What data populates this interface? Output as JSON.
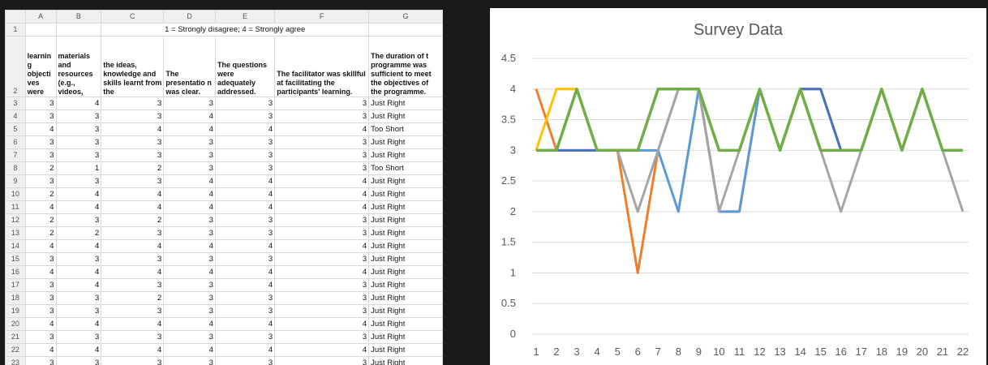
{
  "spreadsheet": {
    "columns": [
      "A",
      "B",
      "C",
      "D",
      "E",
      "F",
      "G"
    ],
    "row1": {
      "num": "1",
      "merged_text": "1 = Strongly disagree; 4 = Strongly agree"
    },
    "row2": {
      "num": "2",
      "headers": [
        "learnin g objecti ves were",
        "materials and resources (e.g., videos,",
        "the ideas, knowledge and skills learnt from the",
        "The presentatio n was clear.",
        "The questions were adequately addressed.",
        "The facilitator was skillful at facilitating the participants' learning.",
        "The duration of t programme was sufficient to meet the objectives of the programme."
      ]
    },
    "rows": [
      {
        "num": "3",
        "A": "3",
        "B": "4",
        "C": "3",
        "D": "3",
        "E": "3",
        "F": "3",
        "G": "Just Right"
      },
      {
        "num": "4",
        "A": "3",
        "B": "3",
        "C": "3",
        "D": "4",
        "E": "3",
        "F": "3",
        "G": "Just Right"
      },
      {
        "num": "5",
        "A": "4",
        "B": "3",
        "C": "4",
        "D": "4",
        "E": "4",
        "F": "4",
        "G": "Too Short"
      },
      {
        "num": "6",
        "A": "3",
        "B": "3",
        "C": "3",
        "D": "3",
        "E": "3",
        "F": "3",
        "G": "Just Right"
      },
      {
        "num": "7",
        "A": "3",
        "B": "3",
        "C": "3",
        "D": "3",
        "E": "3",
        "F": "3",
        "G": "Just Right"
      },
      {
        "num": "8",
        "A": "2",
        "B": "1",
        "C": "2",
        "D": "3",
        "E": "3",
        "F": "3",
        "G": "Too Short"
      },
      {
        "num": "9",
        "A": "3",
        "B": "3",
        "C": "3",
        "D": "4",
        "E": "4",
        "F": "4",
        "G": "Just Right"
      },
      {
        "num": "10",
        "A": "2",
        "B": "4",
        "C": "4",
        "D": "4",
        "E": "4",
        "F": "4",
        "G": "Just Right"
      },
      {
        "num": "11",
        "A": "4",
        "B": "4",
        "C": "4",
        "D": "4",
        "E": "4",
        "F": "4",
        "G": "Just Right"
      },
      {
        "num": "12",
        "A": "2",
        "B": "3",
        "C": "2",
        "D": "3",
        "E": "3",
        "F": "3",
        "G": "Just Right"
      },
      {
        "num": "13",
        "A": "2",
        "B": "2",
        "C": "3",
        "D": "3",
        "E": "3",
        "F": "3",
        "G": "Just Right"
      },
      {
        "num": "14",
        "A": "4",
        "B": "4",
        "C": "4",
        "D": "4",
        "E": "4",
        "F": "4",
        "G": "Just Right"
      },
      {
        "num": "15",
        "A": "3",
        "B": "3",
        "C": "3",
        "D": "3",
        "E": "3",
        "F": "3",
        "G": "Just Right"
      },
      {
        "num": "16",
        "A": "4",
        "B": "4",
        "C": "4",
        "D": "4",
        "E": "4",
        "F": "4",
        "G": "Just Right"
      },
      {
        "num": "17",
        "A": "3",
        "B": "4",
        "C": "3",
        "D": "3",
        "E": "4",
        "F": "3",
        "G": "Just Right"
      },
      {
        "num": "18",
        "A": "3",
        "B": "3",
        "C": "2",
        "D": "3",
        "E": "3",
        "F": "3",
        "G": "Just Right"
      },
      {
        "num": "19",
        "A": "3",
        "B": "3",
        "C": "3",
        "D": "3",
        "E": "3",
        "F": "3",
        "G": "Just Right"
      },
      {
        "num": "20",
        "A": "4",
        "B": "4",
        "C": "4",
        "D": "4",
        "E": "4",
        "F": "4",
        "G": "Just Right"
      },
      {
        "num": "21",
        "A": "3",
        "B": "3",
        "C": "3",
        "D": "3",
        "E": "3",
        "F": "3",
        "G": "Just Right"
      },
      {
        "num": "22",
        "A": "4",
        "B": "4",
        "C": "4",
        "D": "4",
        "E": "4",
        "F": "4",
        "G": "Just Right"
      },
      {
        "num": "23",
        "A": "3",
        "B": "3",
        "C": "3",
        "D": "3",
        "E": "3",
        "F": "3",
        "G": "Just Right"
      }
    ]
  },
  "chart_data": {
    "type": "line",
    "title": "Survey Data",
    "x": [
      "1",
      "2",
      "3",
      "4",
      "5",
      "6",
      "7",
      "8",
      "9",
      "10",
      "11",
      "12",
      "13",
      "14",
      "15",
      "16",
      "17",
      "18",
      "19",
      "20",
      "21",
      "22"
    ],
    "y_ticks": [
      "0",
      "0.5",
      "1",
      "1.5",
      "2",
      "2.5",
      "3",
      "3.5",
      "4",
      "4.5"
    ],
    "ylim": [
      0,
      4.5
    ],
    "grid": true,
    "series": [
      {
        "color": "#ED7D31",
        "values": [
          4,
          3,
          3,
          3,
          3,
          1,
          3,
          4,
          4,
          2,
          2,
          4,
          3,
          4,
          4,
          3,
          3,
          4,
          3,
          4,
          3,
          3
        ]
      },
      {
        "color": "#FFC000",
        "values": [
          3,
          4,
          4,
          3,
          3,
          3,
          4,
          4,
          4,
          3,
          3,
          4,
          3,
          4,
          3,
          3,
          3,
          4,
          3,
          4,
          3,
          3
        ]
      },
      {
        "color": "#4472C4",
        "values": [
          3,
          3,
          3,
          3,
          3,
          3,
          4,
          4,
          4,
          3,
          3,
          4,
          3,
          4,
          4,
          3,
          3,
          4,
          3,
          4,
          3,
          3
        ]
      },
      {
        "color": "#5B9BD5",
        "values": [
          3,
          3,
          4,
          3,
          3,
          3,
          3,
          2,
          4,
          2,
          2,
          4,
          3,
          4,
          3,
          3,
          3,
          4,
          3,
          4,
          3,
          3
        ]
      },
      {
        "color": "#A5A5A5",
        "values": [
          3,
          3,
          4,
          3,
          3,
          2,
          3,
          4,
          4,
          2,
          3,
          4,
          3,
          4,
          3,
          2,
          3,
          4,
          3,
          4,
          3,
          2
        ]
      },
      {
        "color": "#70AD47",
        "values": [
          3,
          3,
          4,
          3,
          3,
          3,
          4,
          4,
          4,
          3,
          3,
          4,
          3,
          4,
          3,
          3,
          3,
          4,
          3,
          4,
          3,
          3
        ]
      }
    ]
  }
}
